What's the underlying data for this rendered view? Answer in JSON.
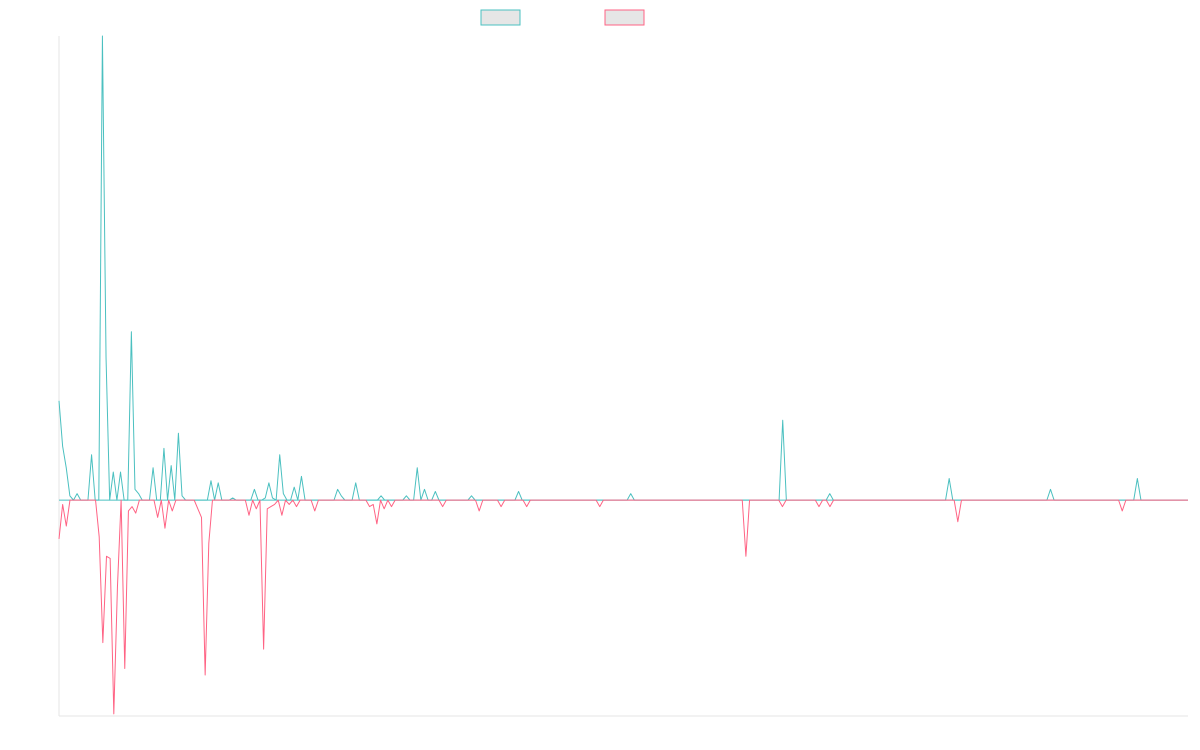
{
  "chart_data": {
    "type": "line",
    "title": "",
    "xlabel": "",
    "ylabel": "",
    "ylim": [
      -100,
      215
    ],
    "legend_position": "top-center",
    "grid": false,
    "series": [
      {
        "name": "",
        "stroke": "#4bc0c0",
        "fill": "#e6e6e6",
        "baseline": "zero",
        "values": [
          46,
          25,
          15,
          2,
          0,
          3,
          0,
          0,
          0,
          21,
          0,
          0,
          215,
          66,
          0,
          13,
          0,
          13,
          0,
          0,
          78,
          5,
          3,
          0,
          0,
          0,
          15,
          0,
          0,
          24,
          0,
          16,
          0,
          31,
          2,
          0,
          0,
          0,
          0,
          0,
          0,
          0,
          9,
          0,
          8,
          0,
          0,
          0,
          1,
          0,
          0,
          0,
          0,
          0,
          5,
          0,
          0,
          1,
          8,
          1,
          0,
          21,
          3,
          0,
          0,
          6,
          0,
          11,
          0,
          0,
          0,
          0,
          0,
          0,
          0,
          0,
          0,
          5,
          2,
          0,
          0,
          0,
          8,
          0,
          0,
          0,
          0,
          0,
          0,
          2,
          0,
          0,
          0,
          0,
          0,
          0,
          2,
          0,
          0,
          15,
          0,
          5,
          0,
          0,
          4,
          0,
          0,
          0,
          0,
          0,
          0,
          0,
          0,
          0,
          2,
          0,
          0,
          0,
          0,
          0,
          0,
          0,
          0,
          0,
          0,
          0,
          0,
          4,
          0,
          0,
          0,
          0,
          0,
          0,
          0,
          0,
          0,
          0,
          0,
          0,
          0,
          0,
          0,
          0,
          0,
          0,
          0,
          0,
          0,
          0,
          0,
          0,
          0,
          0,
          0,
          0,
          0,
          0,
          3,
          0,
          0,
          0,
          0,
          0,
          0,
          0,
          0,
          0,
          0,
          0,
          0,
          0,
          0,
          0,
          0,
          0,
          0,
          0,
          0,
          0,
          0,
          0,
          0,
          0,
          0,
          0,
          0,
          0,
          0,
          0,
          0,
          0,
          0,
          0,
          0,
          0,
          0,
          0,
          0,
          0,
          37,
          0,
          0,
          0,
          0,
          0,
          0,
          0,
          0,
          0,
          0,
          0,
          0,
          3,
          0,
          0,
          0,
          0,
          0,
          0,
          0,
          0,
          0,
          0,
          0,
          0,
          0,
          0,
          0,
          0,
          0,
          0,
          0,
          0,
          0,
          0,
          0,
          0,
          0,
          0,
          0,
          0,
          0,
          0,
          0,
          0,
          10,
          0,
          0,
          0,
          0,
          0,
          0,
          0,
          0,
          0,
          0,
          0,
          0,
          0,
          0,
          0,
          0,
          0,
          0,
          0,
          0,
          0,
          0,
          0,
          0,
          0,
          0,
          0,
          5,
          0,
          0,
          0,
          0,
          0,
          0,
          0,
          0,
          0,
          0,
          0,
          0,
          0,
          0,
          0,
          0,
          0,
          0,
          0,
          0,
          0,
          0,
          0,
          10,
          0,
          0,
          0,
          0,
          0,
          0,
          0,
          0,
          0,
          0,
          0,
          0,
          0,
          0
        ]
      },
      {
        "name": "",
        "stroke": "#ff6384",
        "fill": "#e6e6e6",
        "values": [
          -18,
          -2,
          -12,
          0,
          0,
          0,
          0,
          0,
          0,
          0,
          0,
          -17,
          -66,
          -26,
          -27,
          -99,
          -40,
          0,
          -78,
          -5,
          -3,
          -6,
          0,
          0,
          0,
          0,
          0,
          -8,
          0,
          -13,
          0,
          -5,
          0,
          0,
          0,
          0,
          0,
          0,
          -4,
          -8,
          -81,
          -20,
          0,
          0,
          0,
          0,
          0,
          0,
          0,
          0,
          0,
          0,
          -7,
          0,
          -4,
          0,
          -69,
          -4,
          -3,
          -2,
          0,
          -7,
          0,
          -2,
          0,
          -3,
          0,
          0,
          0,
          0,
          -5,
          0,
          0,
          0,
          0,
          0,
          0,
          0,
          0,
          0,
          0,
          0,
          0,
          0,
          0,
          -3,
          -2,
          -11,
          0,
          -4,
          0,
          -3,
          0,
          0,
          0,
          0,
          0,
          0,
          0,
          0,
          0,
          0,
          0,
          0,
          0,
          -3,
          0,
          0,
          0,
          0,
          0,
          0,
          0,
          0,
          0,
          -5,
          0,
          0,
          0,
          0,
          0,
          -3,
          0,
          0,
          0,
          0,
          0,
          0,
          -3,
          0,
          0,
          0,
          0,
          0,
          0,
          0,
          0,
          0,
          0,
          0,
          0,
          0,
          0,
          0,
          0,
          0,
          0,
          0,
          -3,
          0,
          0,
          0,
          0,
          0,
          0,
          0,
          0,
          0,
          0,
          0,
          0,
          0,
          0,
          0,
          0,
          0,
          0,
          0,
          0,
          0,
          0,
          0,
          0,
          0,
          0,
          0,
          0,
          0,
          0,
          0,
          0,
          0,
          0,
          0,
          0,
          0,
          0,
          0,
          -26,
          0,
          0,
          0,
          0,
          0,
          0,
          0,
          0,
          0,
          -3,
          0,
          0,
          0,
          0,
          0,
          0,
          0,
          0,
          0,
          -3,
          0,
          0,
          -3,
          0,
          0,
          0,
          0,
          0,
          0,
          0,
          0,
          0,
          0,
          0,
          0,
          0,
          0,
          0,
          0,
          0,
          0,
          0,
          0,
          0,
          0,
          0,
          0,
          0,
          0,
          0,
          0,
          0,
          0,
          0,
          0,
          0,
          0,
          -10,
          0,
          0,
          0,
          0,
          0,
          0,
          0,
          0,
          0,
          0,
          0,
          0,
          0,
          0,
          0,
          0,
          0,
          0,
          0,
          0,
          0,
          0,
          0,
          0,
          0,
          0,
          0,
          0,
          0,
          0,
          0,
          0,
          0,
          0,
          0,
          0,
          0,
          0,
          0,
          0,
          0,
          0,
          0,
          0,
          -5,
          0,
          0,
          0,
          0,
          0,
          0,
          0,
          0,
          0,
          0,
          0,
          0,
          0,
          0,
          0,
          0,
          0,
          0
        ]
      }
    ]
  }
}
